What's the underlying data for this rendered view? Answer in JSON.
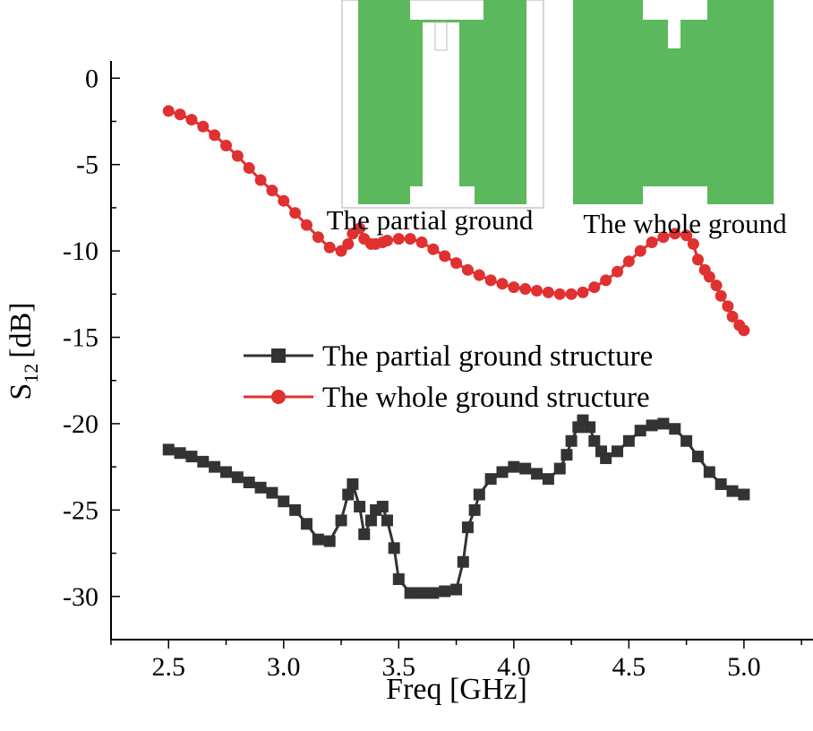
{
  "chart_data": {
    "type": "line",
    "xlabel": "Freq [GHz]",
    "ylabel_main": "S",
    "ylabel_sub": "12",
    "ylabel_unit": "[dB]",
    "xlim": [
      2.25,
      5.3
    ],
    "ylim": [
      -32.5,
      1
    ],
    "xticks": [
      2.5,
      3.0,
      3.5,
      4.0,
      4.5,
      5.0
    ],
    "xtick_labels": [
      "2.5",
      "3.0",
      "3.5",
      "4.0",
      "4.5",
      "5.0"
    ],
    "yticks": [
      0,
      -5,
      -10,
      -15,
      -20,
      -25,
      -30
    ],
    "ytick_labels": [
      "0",
      "-5",
      "-10",
      "-15",
      "-20",
      "-25",
      "-30"
    ],
    "legend": {
      "position": "middle"
    },
    "series": [
      {
        "name": "The partial ground structure",
        "color": "#333333",
        "marker": "square",
        "x": [
          2.5,
          2.55,
          2.6,
          2.65,
          2.7,
          2.75,
          2.8,
          2.85,
          2.9,
          2.95,
          3.0,
          3.05,
          3.1,
          3.15,
          3.2,
          3.25,
          3.28,
          3.3,
          3.33,
          3.35,
          3.38,
          3.4,
          3.43,
          3.45,
          3.48,
          3.5,
          3.55,
          3.6,
          3.65,
          3.7,
          3.75,
          3.78,
          3.8,
          3.83,
          3.85,
          3.9,
          3.95,
          4.0,
          4.05,
          4.1,
          4.15,
          4.2,
          4.23,
          4.25,
          4.28,
          4.3,
          4.33,
          4.35,
          4.38,
          4.4,
          4.45,
          4.5,
          4.55,
          4.6,
          4.65,
          4.7,
          4.75,
          4.8,
          4.85,
          4.9,
          4.95,
          5.0
        ],
        "values": [
          -21.5,
          -21.7,
          -21.9,
          -22.2,
          -22.5,
          -22.8,
          -23.1,
          -23.4,
          -23.7,
          -24.0,
          -24.5,
          -25.0,
          -25.8,
          -26.7,
          -26.8,
          -25.6,
          -24.1,
          -23.5,
          -24.8,
          -26.4,
          -25.6,
          -25.0,
          -24.8,
          -25.6,
          -27.2,
          -29.0,
          -29.8,
          -29.8,
          -29.8,
          -29.7,
          -29.6,
          -28.0,
          -26.0,
          -25.0,
          -24.1,
          -23.2,
          -22.8,
          -22.5,
          -22.6,
          -22.9,
          -23.2,
          -22.6,
          -21.8,
          -21.0,
          -20.2,
          -19.8,
          -20.2,
          -21.0,
          -21.6,
          -22.0,
          -21.6,
          -21.0,
          -20.4,
          -20.1,
          -20.0,
          -20.3,
          -21.0,
          -21.9,
          -22.8,
          -23.5,
          -23.9,
          -24.1
        ]
      },
      {
        "name": "The whole ground structure",
        "color": "#e03030",
        "marker": "circle",
        "x": [
          2.5,
          2.55,
          2.6,
          2.65,
          2.7,
          2.75,
          2.8,
          2.85,
          2.9,
          2.95,
          3.0,
          3.05,
          3.1,
          3.15,
          3.2,
          3.25,
          3.28,
          3.3,
          3.33,
          3.35,
          3.38,
          3.4,
          3.43,
          3.45,
          3.5,
          3.55,
          3.6,
          3.65,
          3.7,
          3.75,
          3.8,
          3.85,
          3.9,
          3.95,
          4.0,
          4.05,
          4.1,
          4.15,
          4.2,
          4.25,
          4.3,
          4.35,
          4.4,
          4.45,
          4.5,
          4.55,
          4.6,
          4.65,
          4.7,
          4.75,
          4.78,
          4.8,
          4.83,
          4.85,
          4.88,
          4.9,
          4.93,
          4.95,
          4.98,
          5.0
        ],
        "values": [
          -1.9,
          -2.1,
          -2.4,
          -2.8,
          -3.3,
          -3.9,
          -4.5,
          -5.2,
          -5.9,
          -6.5,
          -7.1,
          -7.8,
          -8.5,
          -9.2,
          -9.8,
          -10.0,
          -9.6,
          -9.0,
          -8.7,
          -9.3,
          -9.6,
          -9.6,
          -9.5,
          -9.4,
          -9.3,
          -9.3,
          -9.5,
          -9.9,
          -10.3,
          -10.7,
          -11.1,
          -11.4,
          -11.7,
          -11.9,
          -12.1,
          -12.2,
          -12.3,
          -12.4,
          -12.5,
          -12.5,
          -12.4,
          -12.1,
          -11.7,
          -11.2,
          -10.6,
          -10.0,
          -9.5,
          -9.2,
          -9.0,
          -9.1,
          -9.6,
          -10.5,
          -11.1,
          -11.5,
          -12.0,
          -12.6,
          -13.2,
          -13.8,
          -14.3,
          -14.6
        ]
      }
    ]
  },
  "inset": {
    "partial_label": "The partial ground",
    "whole_label": "The whole ground",
    "substrate_color": "#5cb85c",
    "metal_color": "#ffffff"
  }
}
